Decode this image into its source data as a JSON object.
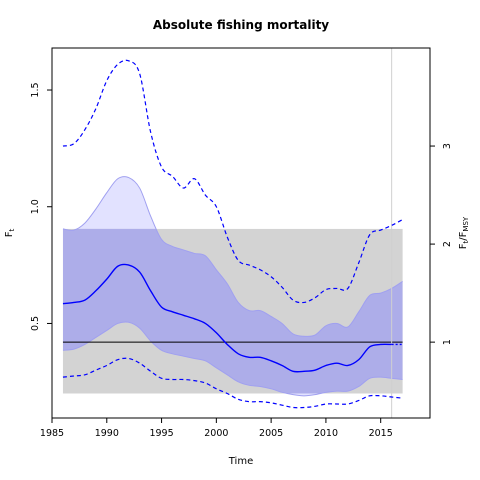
{
  "chart_data": {
    "type": "line",
    "title": "Absolute fishing mortality",
    "xlabel": "Time",
    "ylabel_left": "F",
    "ylabel_left_sub": "t",
    "ylabel_right_pre": "F",
    "ylabel_right_sub1": "t",
    "ylabel_right_mid": "/F",
    "ylabel_right_sub2": "MSY",
    "xlim": [
      1985,
      2019.5
    ],
    "ylim": [
      0.095,
      1.68
    ],
    "x_ticks": [
      1985,
      1990,
      1995,
      2000,
      2005,
      2010,
      2015
    ],
    "y_ticks": [
      0.5,
      1.0,
      1.5
    ],
    "y_tick_labels": [
      "0.5",
      "1.0",
      "1.5"
    ],
    "right_ticks": [
      1,
      2,
      3
    ],
    "right_tick_labels": [
      "1",
      "2",
      "3"
    ],
    "fmsy": 0.42,
    "fmsy_band": {
      "x": [
        1986,
        2017
      ],
      "y": [
        0.2,
        0.905
      ]
    },
    "vline_x": 2016,
    "x": [
      1986,
      1987,
      1988,
      1989,
      1990,
      1991,
      1992,
      1993,
      1994,
      1995,
      1996,
      1997,
      1998,
      1999,
      2000,
      2001,
      2002,
      2003,
      2004,
      2005,
      2006,
      2007,
      2008,
      2009,
      2010,
      2011,
      2012,
      2013,
      2014,
      2015,
      2016,
      2017
    ],
    "series": [
      {
        "name": "estimate",
        "style": "solid",
        "values": [
          0.585,
          0.59,
          0.6,
          0.64,
          0.69,
          0.745,
          0.75,
          0.72,
          0.64,
          0.57,
          0.55,
          0.535,
          0.52,
          0.5,
          0.46,
          0.41,
          0.37,
          0.355,
          0.355,
          0.34,
          0.32,
          0.295,
          0.295,
          0.3,
          0.32,
          0.33,
          0.32,
          0.345,
          0.4,
          0.41,
          0.41,
          0.41
        ]
      },
      {
        "name": "lower_ci",
        "style": "band",
        "values": [
          0.385,
          0.39,
          0.41,
          0.44,
          0.47,
          0.5,
          0.505,
          0.48,
          0.425,
          0.385,
          0.37,
          0.36,
          0.35,
          0.34,
          0.31,
          0.28,
          0.25,
          0.235,
          0.23,
          0.22,
          0.205,
          0.195,
          0.19,
          0.195,
          0.205,
          0.21,
          0.21,
          0.23,
          0.265,
          0.27,
          0.265,
          0.26
        ]
      },
      {
        "name": "upper_ci",
        "style": "band",
        "values": [
          0.905,
          0.9,
          0.93,
          0.99,
          1.06,
          1.12,
          1.125,
          1.08,
          0.96,
          0.86,
          0.83,
          0.815,
          0.8,
          0.79,
          0.73,
          0.67,
          0.59,
          0.555,
          0.555,
          0.53,
          0.5,
          0.455,
          0.445,
          0.45,
          0.49,
          0.5,
          0.485,
          0.55,
          0.62,
          0.63,
          0.65,
          0.68
        ]
      },
      {
        "name": "lower_pred",
        "style": "dashed",
        "values": [
          0.27,
          0.275,
          0.28,
          0.3,
          0.32,
          0.345,
          0.35,
          0.33,
          0.295,
          0.265,
          0.26,
          0.26,
          0.255,
          0.245,
          0.22,
          0.2,
          0.175,
          0.165,
          0.165,
          0.16,
          0.15,
          0.14,
          0.14,
          0.145,
          0.155,
          0.155,
          0.155,
          0.17,
          0.19,
          0.19,
          0.185,
          0.18
        ]
      },
      {
        "name": "upper_pred",
        "style": "dashed",
        "values": [
          1.26,
          1.27,
          1.33,
          1.42,
          1.54,
          1.61,
          1.625,
          1.57,
          1.32,
          1.17,
          1.13,
          1.08,
          1.12,
          1.05,
          1.0,
          0.87,
          0.77,
          0.75,
          0.73,
          0.7,
          0.655,
          0.6,
          0.59,
          0.61,
          0.645,
          0.65,
          0.65,
          0.76,
          0.88,
          0.9,
          0.92,
          0.945
        ]
      }
    ],
    "colors": {
      "line": "#0000ff",
      "ci_fill": "#a0a0f0",
      "ci_fill_early": "#e2e2ff",
      "band_fill": "#d3d3d3",
      "ref_line": "#000000",
      "vline": "#d0d0d0"
    },
    "grid": false,
    "legend": "none"
  }
}
